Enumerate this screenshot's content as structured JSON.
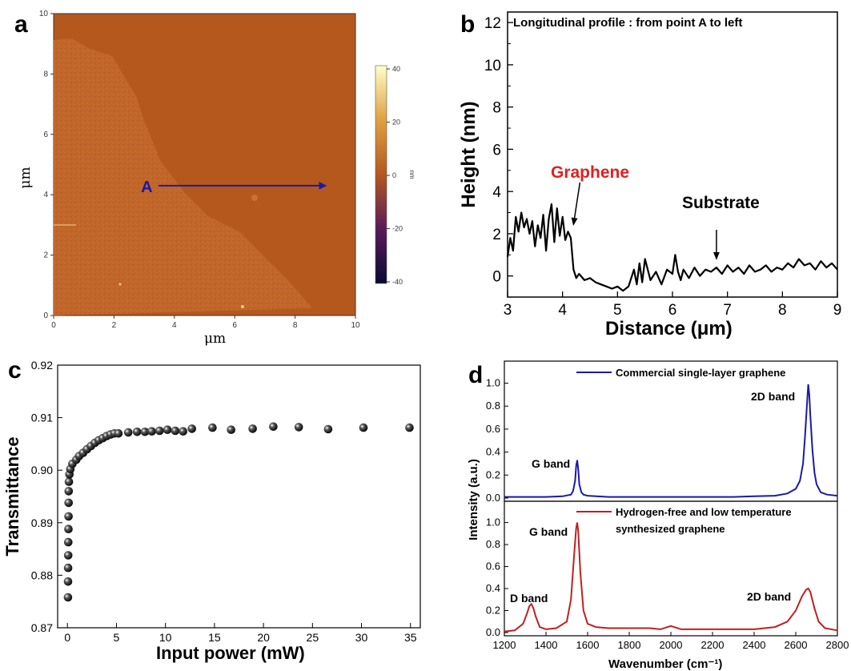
{
  "panels": {
    "a": "a",
    "b": "b",
    "c": "c",
    "d": "d"
  },
  "colors": {
    "afm_base": "#b5581e",
    "afm_graphene": "#c0662a",
    "arrow_a": "#1a1aa8",
    "graphene_label": "#e02020",
    "series_commercial": "#1a1aa8",
    "series_hydrogen_free": "#c02020"
  },
  "chart_data": [
    {
      "panel": "a",
      "type": "heatmap",
      "xlabel": "μm",
      "ylabel": "μm",
      "xlim": [
        0,
        10
      ],
      "ylim": [
        0,
        10
      ],
      "xticks": [
        "0",
        "2",
        "4",
        "6",
        "8",
        "10"
      ],
      "yticks": [
        "0",
        "2",
        "4",
        "6",
        "8",
        "10"
      ],
      "colorbar": {
        "unit": "nm",
        "ticks": [
          "40",
          "20",
          "0",
          "-20",
          "-40"
        ],
        "range": [
          -40,
          40
        ]
      },
      "annotations": [
        {
          "text": "A",
          "x": 3,
          "y": 4.3,
          "arrow_to_x": 9,
          "arrow_to_y": 4.3
        }
      ]
    },
    {
      "panel": "b",
      "type": "line",
      "title": "Longitudinal profile : from point A to left",
      "xlabel": "Distance (μm)",
      "ylabel": "Height (nm)",
      "xlim": [
        3,
        9
      ],
      "ylim": [
        -1,
        12.5
      ],
      "xticks": [
        "3",
        "4",
        "5",
        "6",
        "7",
        "8",
        "9"
      ],
      "yticks": [
        "0",
        "2",
        "4",
        "6",
        "8",
        "10",
        "12"
      ],
      "x": [
        3.0,
        3.05,
        3.1,
        3.15,
        3.2,
        3.25,
        3.3,
        3.35,
        3.4,
        3.45,
        3.5,
        3.55,
        3.6,
        3.65,
        3.7,
        3.75,
        3.8,
        3.85,
        3.9,
        3.95,
        4.0,
        4.05,
        4.1,
        4.15,
        4.2,
        4.25,
        4.3,
        4.4,
        4.5,
        4.6,
        4.7,
        4.8,
        4.9,
        5.0,
        5.1,
        5.2,
        5.3,
        5.35,
        5.4,
        5.45,
        5.5,
        5.6,
        5.7,
        5.8,
        5.9,
        6.0,
        6.05,
        6.1,
        6.15,
        6.2,
        6.3,
        6.4,
        6.5,
        6.6,
        6.7,
        6.8,
        6.9,
        7.0,
        7.1,
        7.2,
        7.3,
        7.4,
        7.5,
        7.6,
        7.7,
        7.8,
        7.9,
        8.0,
        8.1,
        8.2,
        8.3,
        8.4,
        8.5,
        8.6,
        8.7,
        8.8,
        8.9,
        9.0
      ],
      "y": [
        0.9,
        1.8,
        1.2,
        2.8,
        2.1,
        3.0,
        2.3,
        2.7,
        2.0,
        2.6,
        1.4,
        2.4,
        1.8,
        2.9,
        1.2,
        2.7,
        3.4,
        1.6,
        3.2,
        1.9,
        2.8,
        1.7,
        2.1,
        1.8,
        0.3,
        -0.1,
        0.1,
        -0.2,
        -0.1,
        -0.3,
        -0.4,
        -0.5,
        -0.6,
        -0.5,
        -0.7,
        -0.5,
        0.3,
        -0.4,
        0.6,
        -0.3,
        0.8,
        -0.2,
        0.2,
        -0.4,
        0.3,
        0.1,
        1.0,
        0.2,
        -0.2,
        0.3,
        -0.1,
        0.4,
        0.0,
        0.3,
        0.2,
        0.4,
        0.1,
        0.5,
        0.2,
        0.4,
        0.1,
        0.5,
        0.2,
        0.3,
        0.5,
        0.2,
        0.4,
        0.3,
        0.6,
        0.4,
        0.8,
        0.5,
        0.6,
        0.3,
        0.7,
        0.4,
        0.6,
        0.3
      ],
      "annotations": [
        {
          "text": "Graphene",
          "arrow_x": 4.2,
          "arrow_y": 2.3
        },
        {
          "text": "Substrate",
          "arrow_x": 6.8,
          "arrow_y": 0.6
        }
      ]
    },
    {
      "panel": "c",
      "type": "scatter",
      "xlabel": "Input power (mW)",
      "ylabel": "Transmittance",
      "xlim": [
        -1,
        36
      ],
      "ylim": [
        0.87,
        0.92
      ],
      "xticks": [
        "0",
        "5",
        "10",
        "15",
        "20",
        "25",
        "30",
        "35"
      ],
      "yticks": [
        "0.87",
        "0.88",
        "0.89",
        "0.90",
        "0.91",
        "0.92"
      ],
      "x": [
        0.05,
        0.06,
        0.07,
        0.08,
        0.09,
        0.1,
        0.11,
        0.12,
        0.13,
        0.15,
        0.2,
        0.3,
        0.5,
        0.9,
        1.2,
        1.6,
        2.0,
        2.4,
        2.8,
        3.2,
        3.6,
        4.0,
        4.4,
        4.8,
        5.2,
        6.2,
        7.1,
        7.9,
        8.6,
        9.4,
        10.2,
        11.0,
        11.8,
        12.7,
        14.8,
        16.7,
        18.9,
        21.0,
        23.6,
        26.6,
        30.2,
        34.9
      ],
      "y": [
        0.8758,
        0.8788,
        0.8814,
        0.8838,
        0.8863,
        0.8888,
        0.8912,
        0.8938,
        0.896,
        0.8978,
        0.8992,
        0.9002,
        0.9012,
        0.902,
        0.9027,
        0.9033,
        0.904,
        0.9046,
        0.9052,
        0.9057,
        0.9061,
        0.9065,
        0.9068,
        0.907,
        0.907,
        0.9072,
        0.9073,
        0.9073,
        0.9074,
        0.9075,
        0.9077,
        0.9075,
        0.9074,
        0.9079,
        0.9081,
        0.9077,
        0.9079,
        0.9083,
        0.9082,
        0.9078,
        0.9081,
        0.9081
      ]
    },
    {
      "panel": "d",
      "type": "line",
      "xlabel": "Wavenumber (cm⁻¹)",
      "ylabel": "Intensity (a.u.)",
      "xlim": [
        1200,
        2800
      ],
      "xticks": [
        "1200",
        "1400",
        "1600",
        "1800",
        "2000",
        "2200",
        "2400",
        "2600",
        "2800"
      ],
      "yticks": [
        "0.0",
        "0.2",
        "0.4",
        "0.6",
        "0.8",
        "1.0"
      ],
      "series": [
        {
          "name": "Commercial single-layer graphene",
          "ylim": [
            0,
            1.15
          ],
          "x": [
            1200,
            1300,
            1400,
            1480,
            1520,
            1530,
            1540,
            1545,
            1550,
            1555,
            1560,
            1570,
            1580,
            1600,
            1700,
            1800,
            1900,
            2000,
            2100,
            2200,
            2300,
            2400,
            2500,
            2560,
            2600,
            2620,
            2635,
            2645,
            2655,
            2660,
            2665,
            2670,
            2680,
            2690,
            2700,
            2720,
            2750,
            2800
          ],
          "values": [
            0.01,
            0.01,
            0.01,
            0.015,
            0.03,
            0.06,
            0.15,
            0.28,
            0.33,
            0.25,
            0.12,
            0.05,
            0.03,
            0.02,
            0.01,
            0.01,
            0.01,
            0.01,
            0.01,
            0.01,
            0.01,
            0.015,
            0.02,
            0.04,
            0.08,
            0.15,
            0.3,
            0.55,
            0.85,
            0.99,
            0.9,
            0.72,
            0.42,
            0.22,
            0.12,
            0.05,
            0.03,
            0.02
          ],
          "annotations": [
            {
              "text": "G band"
            },
            {
              "text": "2D band"
            }
          ]
        },
        {
          "name": "Hydrogen-free and low temperature synthesized graphene",
          "ylim": [
            0,
            1.15
          ],
          "x": [
            1200,
            1250,
            1290,
            1310,
            1320,
            1330,
            1340,
            1350,
            1370,
            1400,
            1450,
            1500,
            1520,
            1535,
            1545,
            1550,
            1555,
            1565,
            1580,
            1600,
            1640,
            1700,
            1800,
            1900,
            1950,
            2000,
            2050,
            2100,
            2200,
            2300,
            2400,
            2500,
            2560,
            2600,
            2630,
            2650,
            2660,
            2670,
            2690,
            2710,
            2740,
            2800
          ],
          "values": [
            0.01,
            0.02,
            0.08,
            0.18,
            0.24,
            0.26,
            0.22,
            0.15,
            0.05,
            0.03,
            0.04,
            0.1,
            0.3,
            0.7,
            0.95,
            1.0,
            0.92,
            0.55,
            0.2,
            0.08,
            0.05,
            0.04,
            0.04,
            0.04,
            0.03,
            0.06,
            0.03,
            0.03,
            0.03,
            0.03,
            0.03,
            0.05,
            0.1,
            0.2,
            0.33,
            0.39,
            0.4,
            0.37,
            0.22,
            0.1,
            0.04,
            0.02
          ],
          "annotations": [
            {
              "text": "G band"
            },
            {
              "text": "D band"
            },
            {
              "text": "2D band"
            }
          ]
        }
      ],
      "legend_text": {
        "hydrogen_line1": "Hydrogen-free and low temperature",
        "hydrogen_line2": "synthesized graphene"
      }
    }
  ]
}
